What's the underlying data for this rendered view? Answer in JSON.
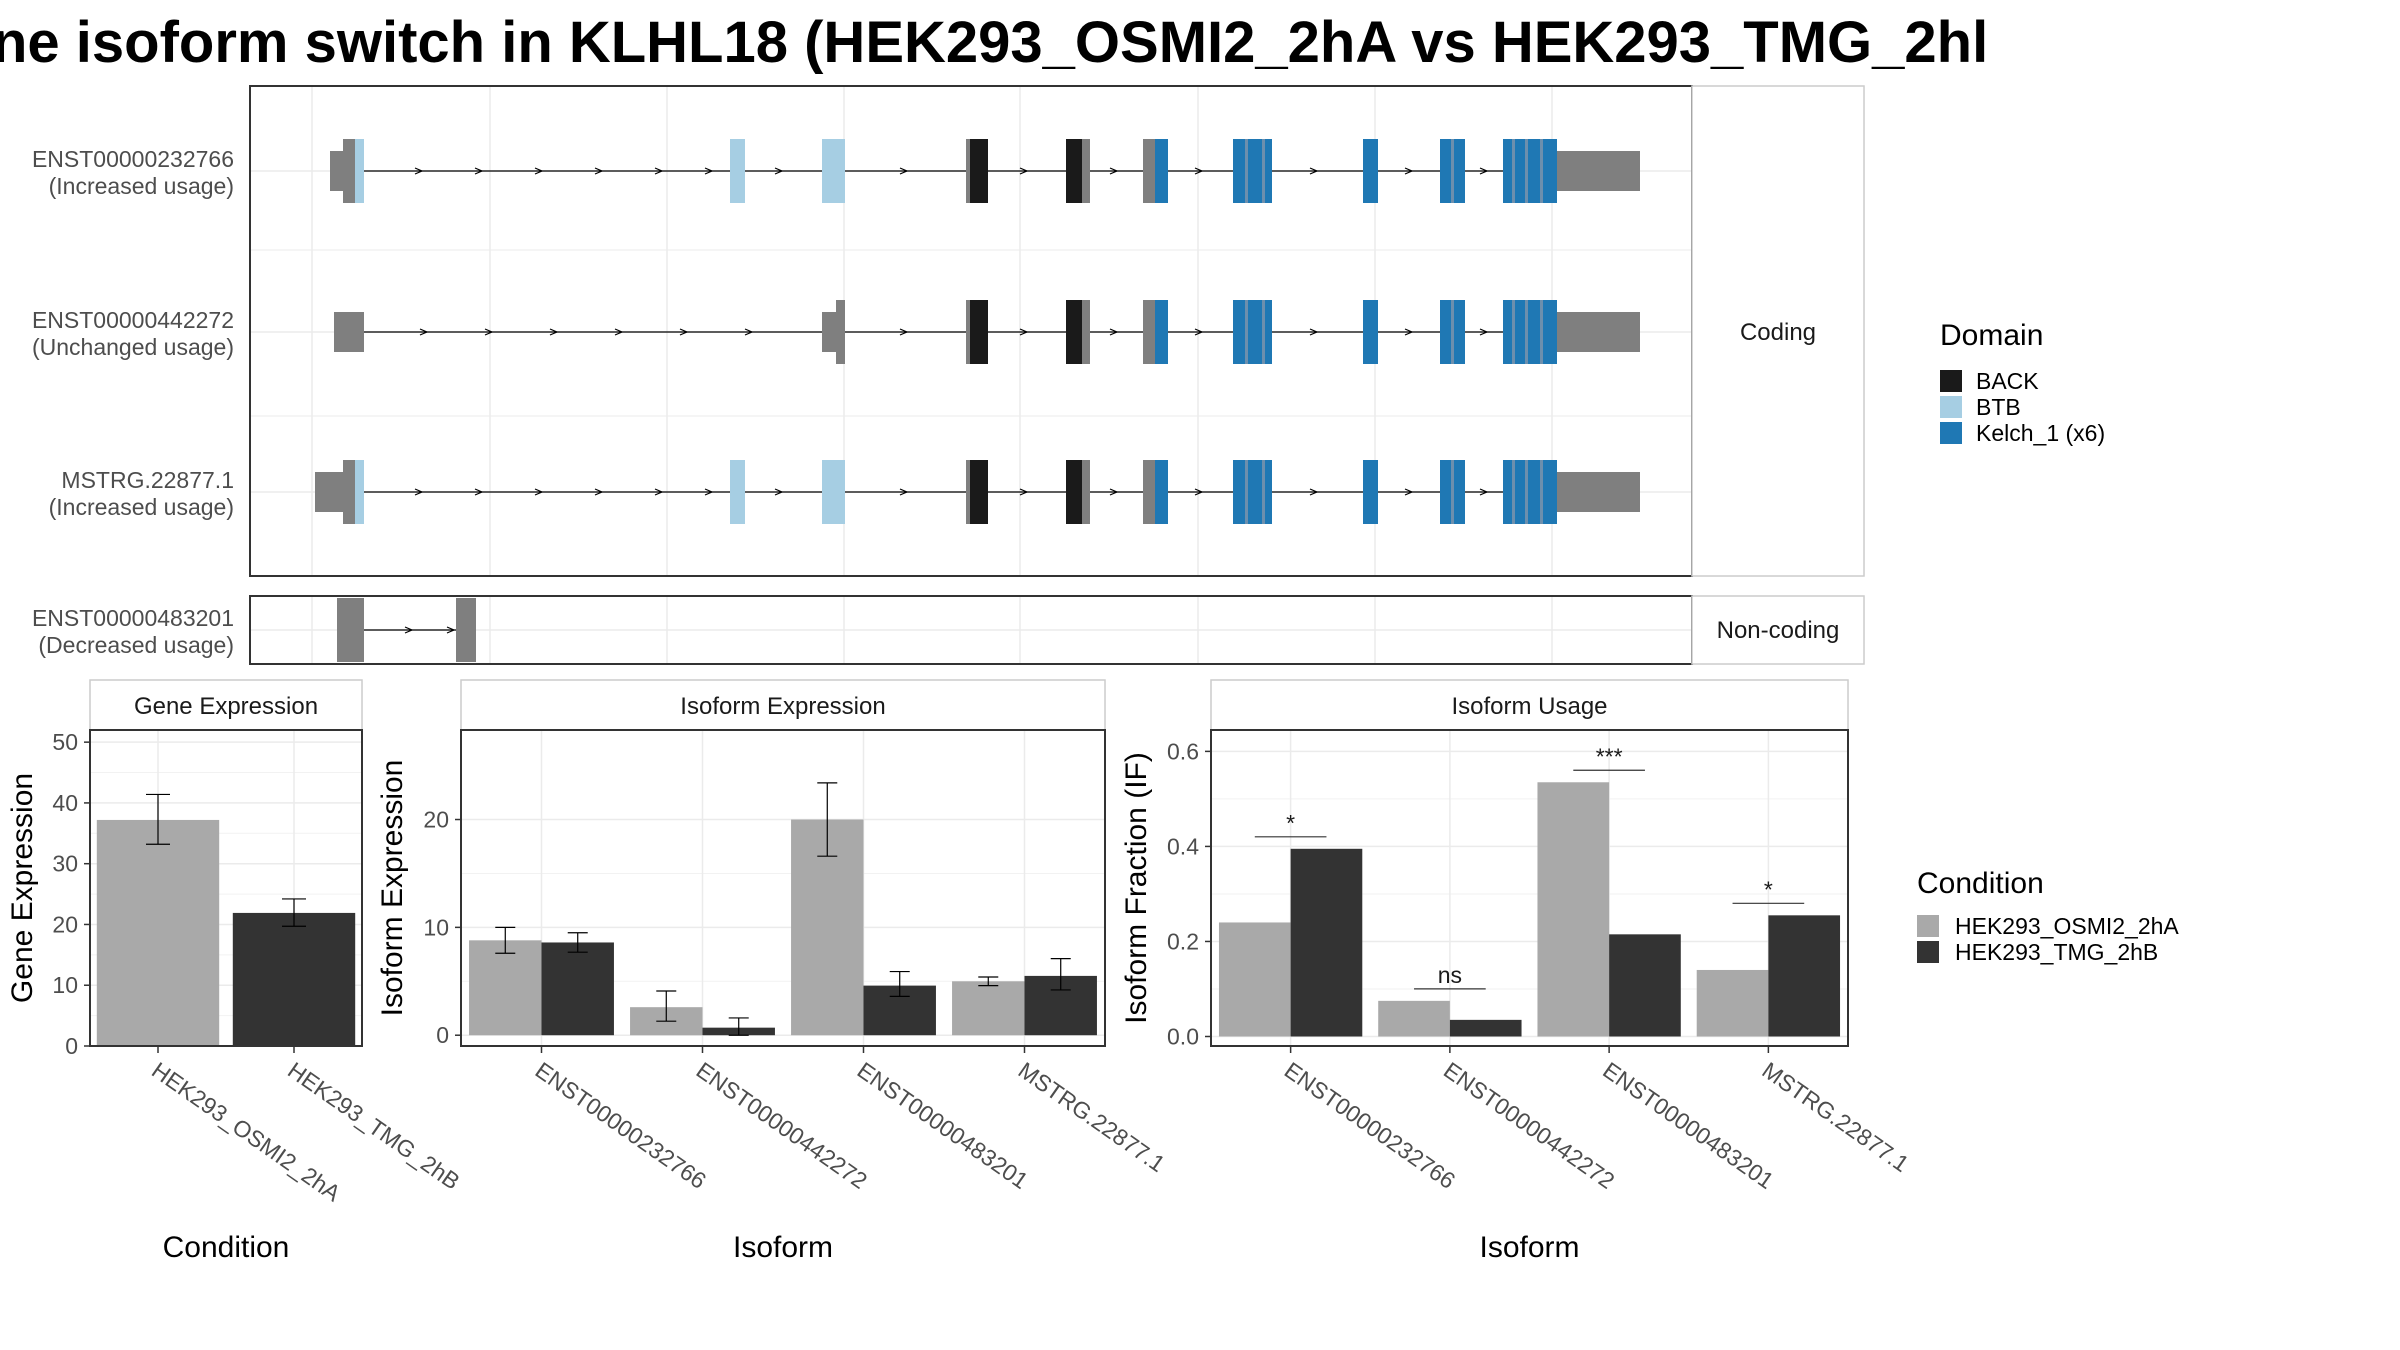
{
  "title": "ne isoform switch in KLHL18 (HEK293_OSMI2_2hA vs HEK293_TMG_2hl",
  "colors": {
    "BACK": "#1a1a1a",
    "BTB": "#a6cee3",
    "Kelch_1": "#1f78b4",
    "utr": "#7f7f7f",
    "line": "#000000",
    "condA": "#a9a9a9",
    "condB": "#333333"
  },
  "chart_data": [
    {
      "type": "gene-structure",
      "panels": [
        {
          "label": "Coding",
          "transcripts": [
            {
              "id": "ENST00000232766",
              "usage": "(Increased usage)"
            },
            {
              "id": "ENST00000442272",
              "usage": "(Unchanged usage)"
            },
            {
              "id": "MSTRG.22877.1",
              "usage": "(Increased usage)"
            }
          ]
        },
        {
          "label": "Non-coding",
          "transcripts": [
            {
              "id": "ENST00000483201",
              "usage": "(Decreased usage)"
            }
          ]
        }
      ],
      "legend": {
        "title": "Domain",
        "position": "right",
        "items": [
          {
            "label": "BACK",
            "color": "#1a1a1a"
          },
          {
            "label": "BTB",
            "color": "#a6cee3"
          },
          {
            "label": "Kelch_1 (x6)",
            "color": "#1f78b4"
          }
        ]
      }
    },
    {
      "type": "bar",
      "title": "Gene Expression",
      "xlabel": "Condition",
      "ylabel": "Gene Expression",
      "categories": [
        "HEK293_OSMI2_2hA",
        "HEK293_TMG_2hB"
      ],
      "values": [
        37.2,
        21.9
      ],
      "errors": [
        [
          33.2,
          41.4
        ],
        [
          19.7,
          24.2
        ]
      ],
      "colors": [
        "#a9a9a9",
        "#333333"
      ],
      "ylim": [
        0,
        52
      ],
      "yticks": [
        0,
        10,
        20,
        30,
        40,
        50
      ],
      "grid": true
    },
    {
      "type": "bar",
      "title": "Isoform Expression",
      "xlabel": "Isoform",
      "ylabel": "Isoform Expression",
      "categories": [
        "ENST00000232766",
        "ENST00000442272",
        "ENST00000483201",
        "MSTRG.22877.1"
      ],
      "series": [
        {
          "name": "HEK293_OSMI2_2hA",
          "color": "#a9a9a9",
          "values": [
            8.8,
            2.6,
            20.0,
            5.0
          ],
          "errors": [
            [
              7.6,
              10.0
            ],
            [
              1.3,
              4.1
            ],
            [
              16.6,
              23.4
            ],
            [
              4.6,
              5.4
            ]
          ]
        },
        {
          "name": "HEK293_TMG_2hB",
          "color": "#333333",
          "values": [
            8.6,
            0.7,
            4.6,
            5.5
          ],
          "errors": [
            [
              7.7,
              9.5
            ],
            [
              0.0,
              1.6
            ],
            [
              3.6,
              5.9
            ],
            [
              4.2,
              7.1
            ]
          ]
        }
      ],
      "ylim": [
        -1,
        28.3
      ],
      "yticks": [
        0,
        10,
        20
      ],
      "grid": true
    },
    {
      "type": "bar",
      "title": "Isoform Usage",
      "xlabel": "Isoform",
      "ylabel": "Isoform Fraction (IF)",
      "categories": [
        "ENST00000232766",
        "ENST00000442272",
        "ENST00000483201",
        "MSTRG.22877.1"
      ],
      "series": [
        {
          "name": "HEK293_OSMI2_2hA",
          "color": "#a9a9a9",
          "values": [
            0.24,
            0.075,
            0.535,
            0.14
          ]
        },
        {
          "name": "HEK293_TMG_2hB",
          "color": "#333333",
          "values": [
            0.395,
            0.035,
            0.215,
            0.255
          ]
        }
      ],
      "significance": [
        "*",
        "ns",
        "***",
        "*"
      ],
      "ylim": [
        -0.02,
        0.645
      ],
      "yticks": [
        0.0,
        0.2,
        0.4,
        0.6
      ],
      "ytick_labels": [
        "0.0",
        "0.2",
        "0.4",
        "0.6"
      ],
      "grid": true
    }
  ],
  "condition_legend": {
    "title": "Condition",
    "items": [
      {
        "label": "HEK293_OSMI2_2hA",
        "color": "#a9a9a9"
      },
      {
        "label": "HEK293_TMG_2hB",
        "color": "#333333"
      }
    ]
  }
}
